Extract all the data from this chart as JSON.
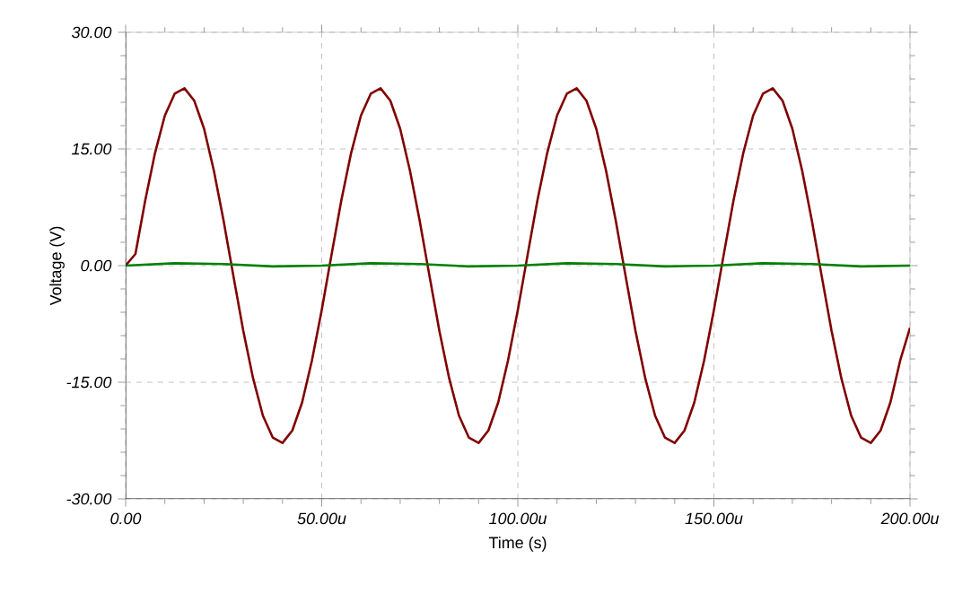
{
  "chart_data": {
    "type": "line",
    "xlabel": "Time (s)",
    "ylabel": "Voltage (V)",
    "xlim": [
      0,
      200
    ],
    "ylim": [
      -30,
      30
    ],
    "xticks": [
      {
        "value": 0,
        "label": "0.00"
      },
      {
        "value": 50,
        "label": "50.00u"
      },
      {
        "value": 100,
        "label": "100.00u"
      },
      {
        "value": 150,
        "label": "150.00u"
      },
      {
        "value": 200,
        "label": "200.00u"
      }
    ],
    "yticks": [
      {
        "value": -30,
        "label": "-30.00"
      },
      {
        "value": -15,
        "label": "-15.00"
      },
      {
        "value": 0,
        "label": "0.00"
      },
      {
        "value": 15,
        "label": "15.00"
      },
      {
        "value": 30,
        "label": "30.00"
      }
    ],
    "grid": true,
    "marker": "none",
    "line_style": "solid",
    "series": [
      {
        "color": "#800000",
        "x": [
          0,
          2.5,
          5,
          7.5,
          10,
          12.5,
          15,
          17.5,
          20,
          22.5,
          25,
          27.5,
          30,
          32.5,
          35,
          37.5,
          40,
          42.5,
          45,
          47.5,
          50,
          52.5,
          55,
          57.5,
          60,
          62.5,
          65,
          67.5,
          70,
          72.5,
          75,
          77.5,
          80,
          82.5,
          85,
          87.5,
          90,
          92.5,
          95,
          97.5,
          100,
          102.5,
          105,
          107.5,
          110,
          112.5,
          115,
          117.5,
          120,
          122.5,
          125,
          127.5,
          130,
          132.5,
          135,
          137.5,
          140,
          142.5,
          145,
          147.5,
          150,
          152.5,
          155,
          157.5,
          160,
          162.5,
          165,
          167.5,
          170,
          172.5,
          175,
          177.5,
          180,
          182.5,
          185,
          187.5,
          190,
          192.5,
          195,
          197.5,
          200
        ],
        "values": [
          0,
          1.5,
          8.4,
          14.5,
          19.3,
          22.1,
          22.8,
          21.2,
          17.6,
          12.2,
          5.7,
          -1.4,
          -8.4,
          -14.5,
          -19.3,
          -22.1,
          -22.8,
          -21.2,
          -17.6,
          -12.2,
          -5.7,
          1.4,
          8.4,
          14.5,
          19.3,
          22.1,
          22.8,
          21.2,
          17.6,
          12.2,
          5.7,
          -1.4,
          -8.4,
          -14.5,
          -19.3,
          -22.1,
          -22.8,
          -21.2,
          -17.6,
          -12.2,
          -5.7,
          1.4,
          8.4,
          14.5,
          19.3,
          22.1,
          22.8,
          21.2,
          17.6,
          12.2,
          5.7,
          -1.4,
          -8.4,
          -14.5,
          -19.3,
          -22.1,
          -22.8,
          -21.2,
          -17.6,
          -12.2,
          -5.7,
          1.4,
          8.4,
          14.5,
          19.3,
          22.1,
          22.8,
          21.2,
          17.6,
          12.2,
          5.7,
          -1.4,
          -8.4,
          -14.5,
          -19.3,
          -22.1,
          -22.8,
          -21.2,
          -17.6,
          -12.2,
          -8
        ]
      },
      {
        "color": "#008000",
        "x": [
          0,
          12.5,
          25,
          37.5,
          50,
          62.5,
          75,
          87.5,
          100,
          112.5,
          125,
          137.5,
          150,
          162.5,
          175,
          187.5,
          200
        ],
        "values": [
          0,
          0.3,
          0.2,
          -0.1,
          0,
          0.3,
          0.2,
          -0.1,
          0,
          0.3,
          0.2,
          -0.1,
          0,
          0.3,
          0.2,
          -0.1,
          0
        ]
      }
    ]
  }
}
